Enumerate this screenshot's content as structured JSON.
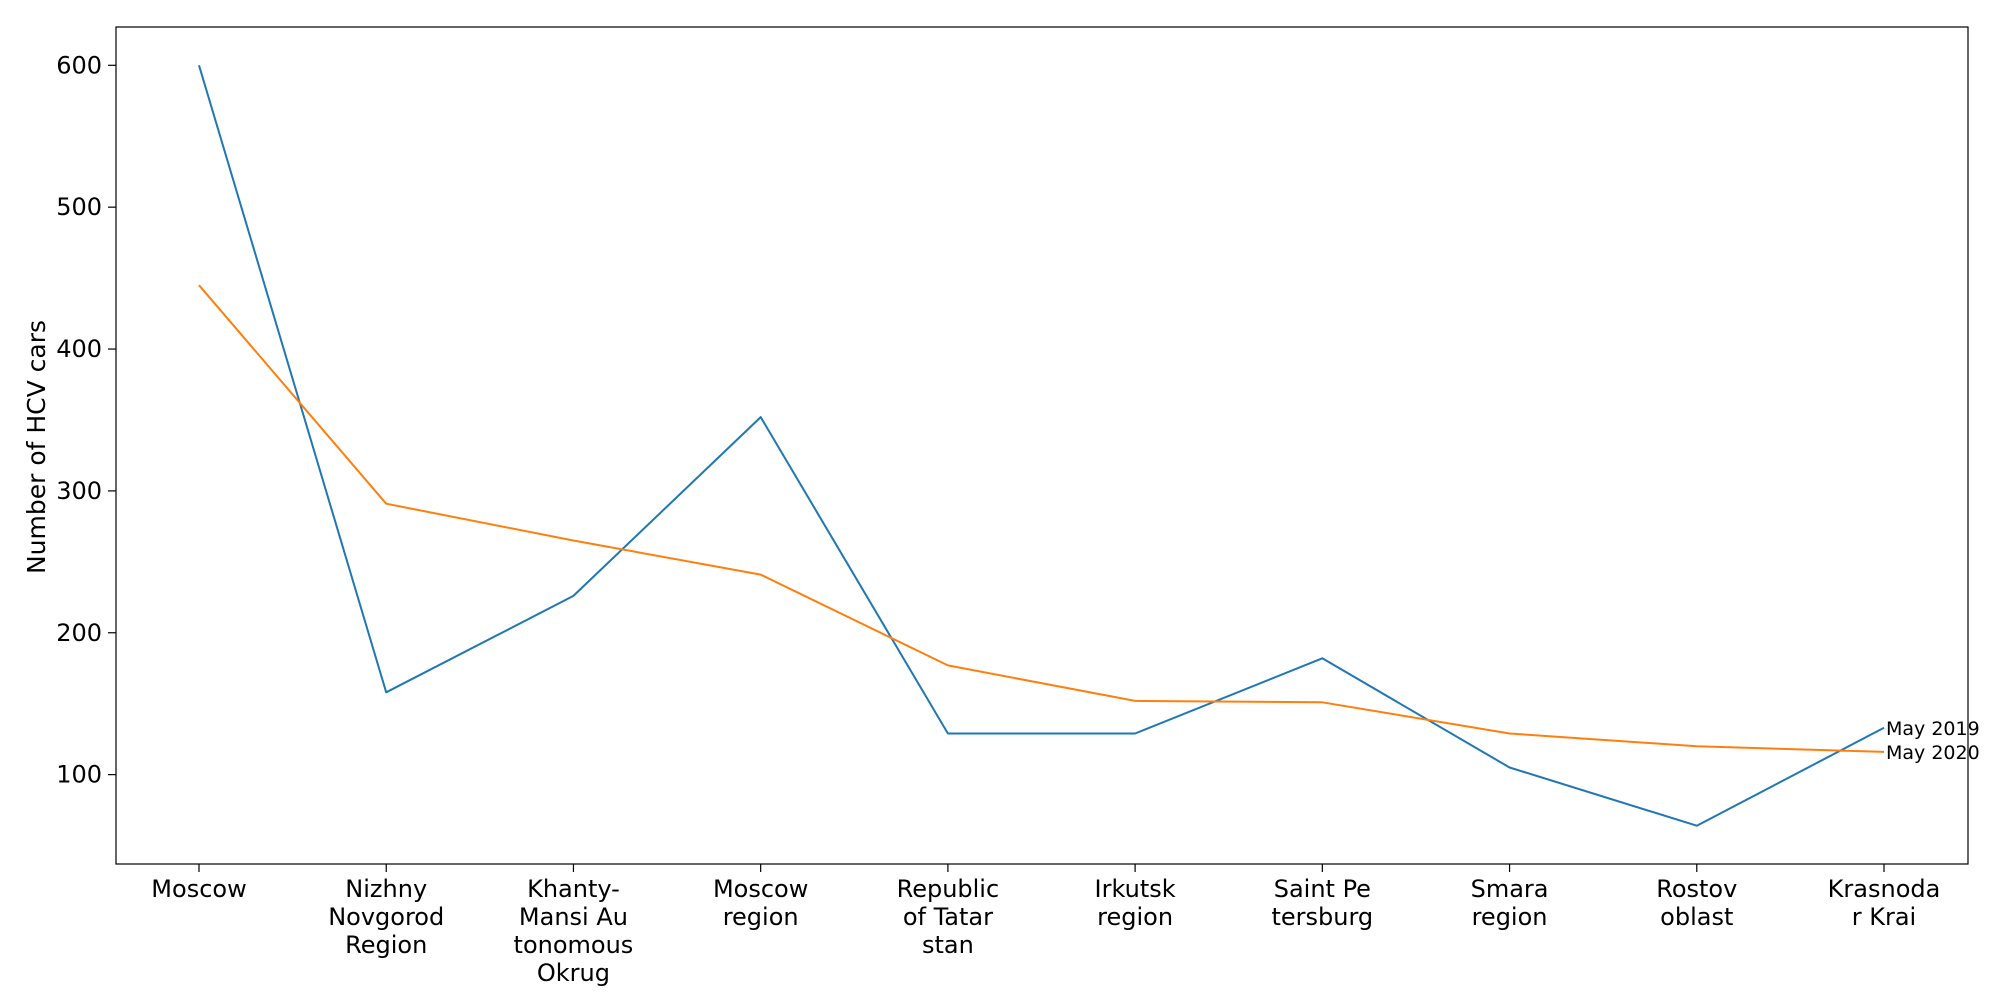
{
  "chart_data": {
    "type": "line",
    "title": "",
    "xlabel": "",
    "ylabel": "Number of HCV cars",
    "categories": [
      [
        "Moscow"
      ],
      [
        "Nizhny",
        "Novgorod",
        "Region"
      ],
      [
        "Khanty-",
        "Mansi Au",
        "tonomous",
        "Okrug"
      ],
      [
        "Moscow",
        "region"
      ],
      [
        "Republic",
        "of Tatar",
        "stan"
      ],
      [
        "Irkutsk",
        "region"
      ],
      [
        "Saint Pe",
        "tersburg"
      ],
      [
        "Smara",
        "region"
      ],
      [
        "Rostov",
        "oblast"
      ],
      [
        "Krasnoda",
        "r Krai"
      ]
    ],
    "yticks": [
      100,
      200,
      300,
      400,
      500,
      600
    ],
    "ylim": [
      37,
      627
    ],
    "grid": false,
    "legend": "none",
    "series": [
      {
        "name": "May 2019",
        "color": "#1f77b4",
        "values": [
          600,
          158,
          226,
          352,
          129,
          129,
          182,
          105,
          64,
          133
        ]
      },
      {
        "name": "May 2020",
        "color": "#ff7f0e",
        "values": [
          445,
          291,
          265,
          241,
          177,
          152,
          151,
          129,
          120,
          116
        ]
      }
    ]
  }
}
